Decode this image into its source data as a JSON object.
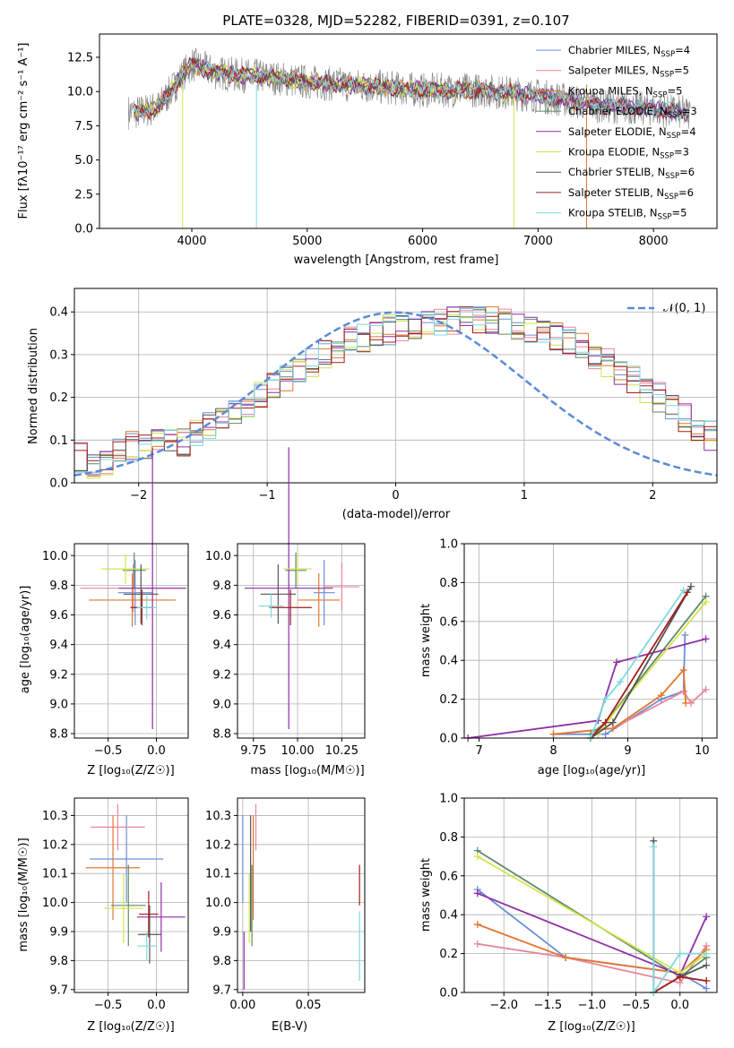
{
  "spectrum": {
    "title": "PLATE=0328, MJD=52282, FIBERID=0391, z=0.107",
    "xlabel": "wavelength [Angstrom, rest frame]",
    "ylabel": "Flux [fλ10⁻¹⁷ erg cm⁻² s⁻¹ A⁻¹]"
  },
  "residuals": {
    "xlabel": "(data-model)/error",
    "ylabel": "Normed distribution",
    "normal_label": "𝒩(0, 1)"
  },
  "panels": {
    "age_z": {
      "xlabel": "Z [log₁₀(Z/Z☉)]",
      "ylabel": "age  [log₁₀(age/yr)]"
    },
    "age_mass": {
      "xlabel": "mass [log₁₀(M/M☉)]"
    },
    "mw_age": {
      "xlabel": "age  [log₁₀(age/yr)]",
      "ylabel": "mass weight"
    },
    "mass_z": {
      "xlabel": "Z [log₁₀(Z/Z☉)]",
      "ylabel": "mass [log₁₀(M/M☉)]"
    },
    "mass_ebv": {
      "xlabel": "E(B-V)"
    },
    "mw_z": {
      "xlabel": "Z [log₁₀(Z/Z☉)]",
      "ylabel": "mass weight"
    }
  },
  "chart_data": [
    {
      "type": "line",
      "title": "PLATE=0328, MJD=52282, FIBERID=0391, z=0.107",
      "xlabel": "wavelength [Angstrom, rest frame]",
      "ylabel": "Flux [fλ10⁻¹⁷ erg cm⁻² s⁻¹ A⁻¹]",
      "xlim": [
        3200,
        8550
      ],
      "ylim": [
        0,
        14.2
      ],
      "xticks": [
        4000,
        5000,
        6000,
        7000,
        8000
      ],
      "yticks": [
        "0.0",
        "2.5",
        "5.0",
        "7.5",
        "10.0",
        "12.5"
      ],
      "legend_position": "top-right",
      "series": [
        {
          "name": "Chabrier MILES, N_SSP=4",
          "color": "#6a8fd6"
        },
        {
          "name": "Salpeter MILES, N_SSP=5",
          "color": "#e8879c"
        },
        {
          "name": "Kroupa MILES, N_SSP=5",
          "color": "#e2772e"
        },
        {
          "name": "Chabrier ELODIE, N_SSP=3",
          "color": "#5f8a6a"
        },
        {
          "name": "Salpeter ELODIE, N_SSP=4",
          "color": "#8f2fa8"
        },
        {
          "name": "Kroupa ELODIE, N_SSP=3",
          "color": "#d3e34a"
        },
        {
          "name": "Chabrier STELIB, N_SSP=6",
          "color": "#555555"
        },
        {
          "name": "Salpeter STELIB, N_SSP=6",
          "color": "#a31d1d"
        },
        {
          "name": "Kroupa STELIB, N_SSP=5",
          "color": "#7fd8e0"
        }
      ],
      "continuum_samples": {
        "x": [
          3550,
          3700,
          3800,
          3900,
          4000,
          4100,
          4200,
          4400,
          4600,
          4800,
          5000,
          5500,
          6000,
          6500,
          7000,
          7500,
          8000,
          8300
        ],
        "y": [
          8.5,
          8.8,
          9.8,
          11.0,
          12.0,
          11.7,
          11.4,
          11.2,
          11.1,
          10.9,
          10.7,
          10.4,
          10.1,
          10.1,
          9.7,
          9.0,
          8.7,
          8.4
        ]
      },
      "data_color": "#808080"
    },
    {
      "type": "histogram",
      "xlabel": "(data-model)/error",
      "ylabel": "Normed distribution",
      "xlim": [
        -2.5,
        2.5
      ],
      "ylim": [
        0,
        0.455
      ],
      "xticks": [
        "−2",
        "−1",
        "0",
        "1",
        "2"
      ],
      "yticks": [
        "0.0",
        "0.1",
        "0.2",
        "0.3",
        "0.4"
      ],
      "bin_edges_start": -2.5,
      "bin_width": 0.1,
      "base_profile": [
        0.06,
        0.045,
        0.05,
        0.07,
        0.085,
        0.08,
        0.09,
        0.1,
        0.095,
        0.12,
        0.13,
        0.15,
        0.17,
        0.185,
        0.205,
        0.225,
        0.245,
        0.265,
        0.28,
        0.3,
        0.315,
        0.33,
        0.34,
        0.35,
        0.358,
        0.365,
        0.37,
        0.375,
        0.378,
        0.382,
        0.385,
        0.383,
        0.38,
        0.375,
        0.37,
        0.362,
        0.355,
        0.345,
        0.33,
        0.315,
        0.3,
        0.28,
        0.26,
        0.24,
        0.22,
        0.2,
        0.17,
        0.15,
        0.13,
        0.11
      ],
      "series_colors": [
        "#6a8fd6",
        "#e8879c",
        "#e2772e",
        "#5f8a6a",
        "#8f2fa8",
        "#d3e34a",
        "#555555",
        "#a31d1d",
        "#7fd8e0"
      ],
      "normal_curve": {
        "label": "𝒩(0, 1)",
        "mean": 0,
        "sigma": 1,
        "color": "#5b8ad6",
        "style": "dashed"
      },
      "legend_position": "top-right"
    },
    {
      "type": "scatter",
      "xlabel": "Z [log₁₀(Z/Z☉)]",
      "ylabel": "age  [log₁₀(age/yr)]",
      "xlim": [
        -0.85,
        0.33
      ],
      "ylim": [
        8.77,
        10.08
      ],
      "xticks": [
        "−0.5",
        "0.0"
      ],
      "yticks": [
        "8.8",
        "9.0",
        "9.2",
        "9.4",
        "9.6",
        "9.8",
        "10.0"
      ],
      "points": [
        {
          "x": -0.22,
          "y": 9.75,
          "xerr": 0.18,
          "yerr": 0.22,
          "color": "#6a8fd6"
        },
        {
          "x": -0.24,
          "y": 9.78,
          "xerr": 0.55,
          "yerr": 0.16,
          "color": "#e8879c"
        },
        {
          "x": -0.25,
          "y": 9.7,
          "xerr": 0.45,
          "yerr": 0.18,
          "color": "#e2772e"
        },
        {
          "x": -0.23,
          "y": 9.9,
          "xerr": 0.12,
          "yerr": 0.12,
          "color": "#5f8a6a"
        },
        {
          "x": -0.04,
          "y": 9.78,
          "xerr": 0.35,
          "yerr": 0.95,
          "color": "#8f2fa8"
        },
        {
          "x": -0.32,
          "y": 9.91,
          "xerr": 0.25,
          "yerr": 0.1,
          "color": "#d3e34a"
        },
        {
          "x": -0.16,
          "y": 9.74,
          "xerr": 0.18,
          "yerr": 0.2,
          "color": "#555555"
        },
        {
          "x": -0.15,
          "y": 9.65,
          "xerr": 0.12,
          "yerr": 0.12,
          "color": "#a31d1d"
        },
        {
          "x": -0.1,
          "y": 9.65,
          "xerr": 0.1,
          "yerr": 0.08,
          "color": "#7fd8e0"
        }
      ]
    },
    {
      "type": "scatter",
      "xlabel": "mass [log₁₀(M/M☉)]",
      "xlim": [
        9.66,
        10.38
      ],
      "ylim": [
        8.77,
        10.08
      ],
      "xticks": [
        "9.75",
        "10.00",
        "10.25"
      ],
      "yticks": [
        "8.8",
        "9.0",
        "9.2",
        "9.4",
        "9.6",
        "9.8",
        "10.0"
      ],
      "points": [
        {
          "x": 10.15,
          "y": 9.75,
          "xerr": 0.06,
          "yerr": 0.22,
          "color": "#6a8fd6"
        },
        {
          "x": 10.25,
          "y": 9.79,
          "xerr": 0.1,
          "yerr": 0.16,
          "color": "#e8879c"
        },
        {
          "x": 10.12,
          "y": 9.7,
          "xerr": 0.12,
          "yerr": 0.18,
          "color": "#e2772e"
        },
        {
          "x": 9.99,
          "y": 9.9,
          "xerr": 0.06,
          "yerr": 0.12,
          "color": "#5f8a6a"
        },
        {
          "x": 9.95,
          "y": 9.78,
          "xerr": 0.25,
          "yerr": 0.95,
          "color": "#8f2fa8"
        },
        {
          "x": 10.0,
          "y": 9.91,
          "xerr": 0.08,
          "yerr": 0.1,
          "color": "#d3e34a"
        },
        {
          "x": 9.89,
          "y": 9.74,
          "xerr": 0.1,
          "yerr": 0.2,
          "color": "#555555"
        },
        {
          "x": 9.96,
          "y": 9.65,
          "xerr": 0.12,
          "yerr": 0.12,
          "color": "#a31d1d"
        },
        {
          "x": 9.85,
          "y": 9.66,
          "xerr": 0.07,
          "yerr": 0.08,
          "color": "#7fd8e0"
        }
      ]
    },
    {
      "type": "line",
      "xlabel": "age  [log₁₀(age/yr)]",
      "ylabel": "mass weight",
      "xlim": [
        6.8,
        10.2
      ],
      "ylim": [
        0,
        1
      ],
      "xticks": [
        "7",
        "8",
        "9",
        "10"
      ],
      "yticks": [
        "0.0",
        "0.2",
        "0.4",
        "0.6",
        "0.8",
        "1.0"
      ],
      "series": [
        {
          "color": "#6a8fd6",
          "x": [
            8.0,
            8.7,
            9.45,
            9.75,
            9.77
          ],
          "y": [
            0.02,
            0.02,
            0.2,
            0.24,
            0.53
          ]
        },
        {
          "color": "#e8879c",
          "x": [
            8.0,
            8.8,
            9.75,
            9.85,
            10.05
          ],
          "y": [
            0.02,
            0.05,
            0.24,
            0.18,
            0.25
          ]
        },
        {
          "color": "#e2772e",
          "x": [
            8.0,
            8.8,
            9.45,
            9.75,
            9.78
          ],
          "y": [
            0.02,
            0.05,
            0.22,
            0.35,
            0.18
          ]
        },
        {
          "color": "#5f8a6a",
          "x": [
            8.5,
            8.7,
            10.05
          ],
          "y": [
            0.02,
            0.08,
            0.73
          ]
        },
        {
          "color": "#8f2fa8",
          "x": [
            6.85,
            8.6,
            8.85,
            10.05
          ],
          "y": [
            0.0,
            0.09,
            0.39,
            0.51
          ]
        },
        {
          "color": "#d3e34a",
          "x": [
            8.6,
            8.75,
            10.05
          ],
          "y": [
            0.02,
            0.1,
            0.7
          ]
        },
        {
          "color": "#555555",
          "x": [
            8.5,
            8.8,
            9.85
          ],
          "y": [
            0.0,
            0.08,
            0.78
          ]
        },
        {
          "color": "#a31d1d",
          "x": [
            8.5,
            8.7,
            9.8
          ],
          "y": [
            0.0,
            0.08,
            0.75
          ]
        },
        {
          "color": "#7fd8e0",
          "x": [
            8.5,
            8.7,
            8.9,
            9.75
          ],
          "y": [
            0.0,
            0.2,
            0.29,
            0.76
          ]
        }
      ]
    },
    {
      "type": "scatter",
      "xlabel": "Z [log₁₀(Z/Z☉)]",
      "ylabel": "mass [log₁₀(M/M☉)]",
      "xlim": [
        -0.85,
        0.33
      ],
      "ylim": [
        9.69,
        10.36
      ],
      "xticks": [
        "−0.5",
        "0.0"
      ],
      "yticks": [
        "9.7",
        "9.8",
        "9.9",
        "10.0",
        "10.1",
        "10.2",
        "10.3"
      ],
      "points": [
        {
          "x": -0.31,
          "y": 10.15,
          "xerr": 0.38,
          "yerr": 0.15,
          "color": "#6a8fd6"
        },
        {
          "x": -0.4,
          "y": 10.26,
          "xerr": 0.28,
          "yerr": 0.08,
          "color": "#e8879c"
        },
        {
          "x": -0.45,
          "y": 10.12,
          "xerr": 0.28,
          "yerr": 0.18,
          "color": "#e2772e"
        },
        {
          "x": -0.29,
          "y": 9.99,
          "xerr": 0.18,
          "yerr": 0.14,
          "color": "#5f8a6a"
        },
        {
          "x": 0.05,
          "y": 9.95,
          "xerr": 0.25,
          "yerr": 0.12,
          "color": "#8f2fa8"
        },
        {
          "x": -0.34,
          "y": 9.98,
          "xerr": 0.2,
          "yerr": 0.12,
          "color": "#d3e34a"
        },
        {
          "x": -0.07,
          "y": 9.89,
          "xerr": 0.12,
          "yerr": 0.1,
          "color": "#555555"
        },
        {
          "x": -0.08,
          "y": 9.96,
          "xerr": 0.1,
          "yerr": 0.08,
          "color": "#a31d1d"
        },
        {
          "x": -0.1,
          "y": 9.85,
          "xerr": 0.1,
          "yerr": 0.05,
          "color": "#7fd8e0"
        }
      ]
    },
    {
      "type": "scatter",
      "xlabel": "E(B-V)",
      "xlim": [
        -0.004,
        0.093
      ],
      "ylim": [
        9.69,
        10.36
      ],
      "xticks": [
        "0.00",
        "0.05"
      ],
      "yticks": [
        "9.7",
        "9.8",
        "9.9",
        "10.0",
        "10.1",
        "10.2",
        "10.3"
      ],
      "points": [
        {
          "x": 0.0,
          "y": 10.15,
          "xerr": 0,
          "yerr": 0.15,
          "color": "#6a8fd6"
        },
        {
          "x": 0.01,
          "y": 10.26,
          "xerr": 0,
          "yerr": 0.08,
          "color": "#e8879c"
        },
        {
          "x": 0.008,
          "y": 10.12,
          "xerr": 0,
          "yerr": 0.18,
          "color": "#e2772e"
        },
        {
          "x": 0.007,
          "y": 9.99,
          "xerr": 0,
          "yerr": 0.14,
          "color": "#5f8a6a"
        },
        {
          "x": 0.001,
          "y": 9.8,
          "xerr": 0,
          "yerr": 0.1,
          "color": "#8f2fa8"
        },
        {
          "x": 0.005,
          "y": 9.98,
          "xerr": 0,
          "yerr": 0.12,
          "color": "#d3e34a"
        },
        {
          "x": 0.006,
          "y": 10.1,
          "xerr": 0,
          "yerr": 0.2,
          "color": "#555555"
        },
        {
          "x": 0.089,
          "y": 10.06,
          "xerr": 0,
          "yerr": 0.07,
          "color": "#a31d1d"
        },
        {
          "x": 0.089,
          "y": 9.85,
          "xerr": 0,
          "yerr": 0.12,
          "color": "#7fd8e0"
        }
      ]
    },
    {
      "type": "line",
      "xlabel": "Z [log₁₀(Z/Z☉)]",
      "ylabel": "mass weight",
      "xlim": [
        -2.45,
        0.42
      ],
      "ylim": [
        0,
        1
      ],
      "xticks": [
        "−2.0",
        "−1.5",
        "−1.0",
        "−0.5",
        "0.0"
      ],
      "yticks": [
        "0.0",
        "0.2",
        "0.4",
        "0.6",
        "0.8",
        "1.0"
      ],
      "series": [
        {
          "color": "#6a8fd6",
          "x": [
            -2.3,
            -1.3,
            0.0,
            0.3
          ],
          "y": [
            0.53,
            0.18,
            0.1,
            0.02
          ]
        },
        {
          "color": "#e8879c",
          "x": [
            -2.3,
            -1.3,
            0.0,
            0.3
          ],
          "y": [
            0.25,
            0.18,
            0.05,
            0.24
          ]
        },
        {
          "color": "#e2772e",
          "x": [
            -2.3,
            -1.3,
            0.0,
            0.3
          ],
          "y": [
            0.35,
            0.18,
            0.1,
            0.22
          ]
        },
        {
          "color": "#5f8a6a",
          "x": [
            -2.3,
            0.0,
            0.3
          ],
          "y": [
            0.73,
            0.08,
            0.18
          ]
        },
        {
          "color": "#8f2fa8",
          "x": [
            -2.3,
            0.0,
            0.3
          ],
          "y": [
            0.51,
            0.09,
            0.39
          ]
        },
        {
          "color": "#d3e34a",
          "x": [
            -2.3,
            0.0,
            0.3
          ],
          "y": [
            0.7,
            0.1,
            0.2
          ]
        },
        {
          "color": "#555555",
          "x": [
            -0.3,
            -0.3,
            0.0,
            0.3
          ],
          "y": [
            0.78,
            0.0,
            0.08,
            0.14
          ]
        },
        {
          "color": "#a31d1d",
          "x": [
            -0.3,
            0.0,
            0.3
          ],
          "y": [
            0.0,
            0.08,
            0.06
          ]
        },
        {
          "color": "#7fd8e0",
          "x": [
            -0.3,
            -0.3,
            0.0,
            0.3
          ],
          "y": [
            0.75,
            0.0,
            0.2,
            0.2
          ]
        }
      ]
    }
  ]
}
